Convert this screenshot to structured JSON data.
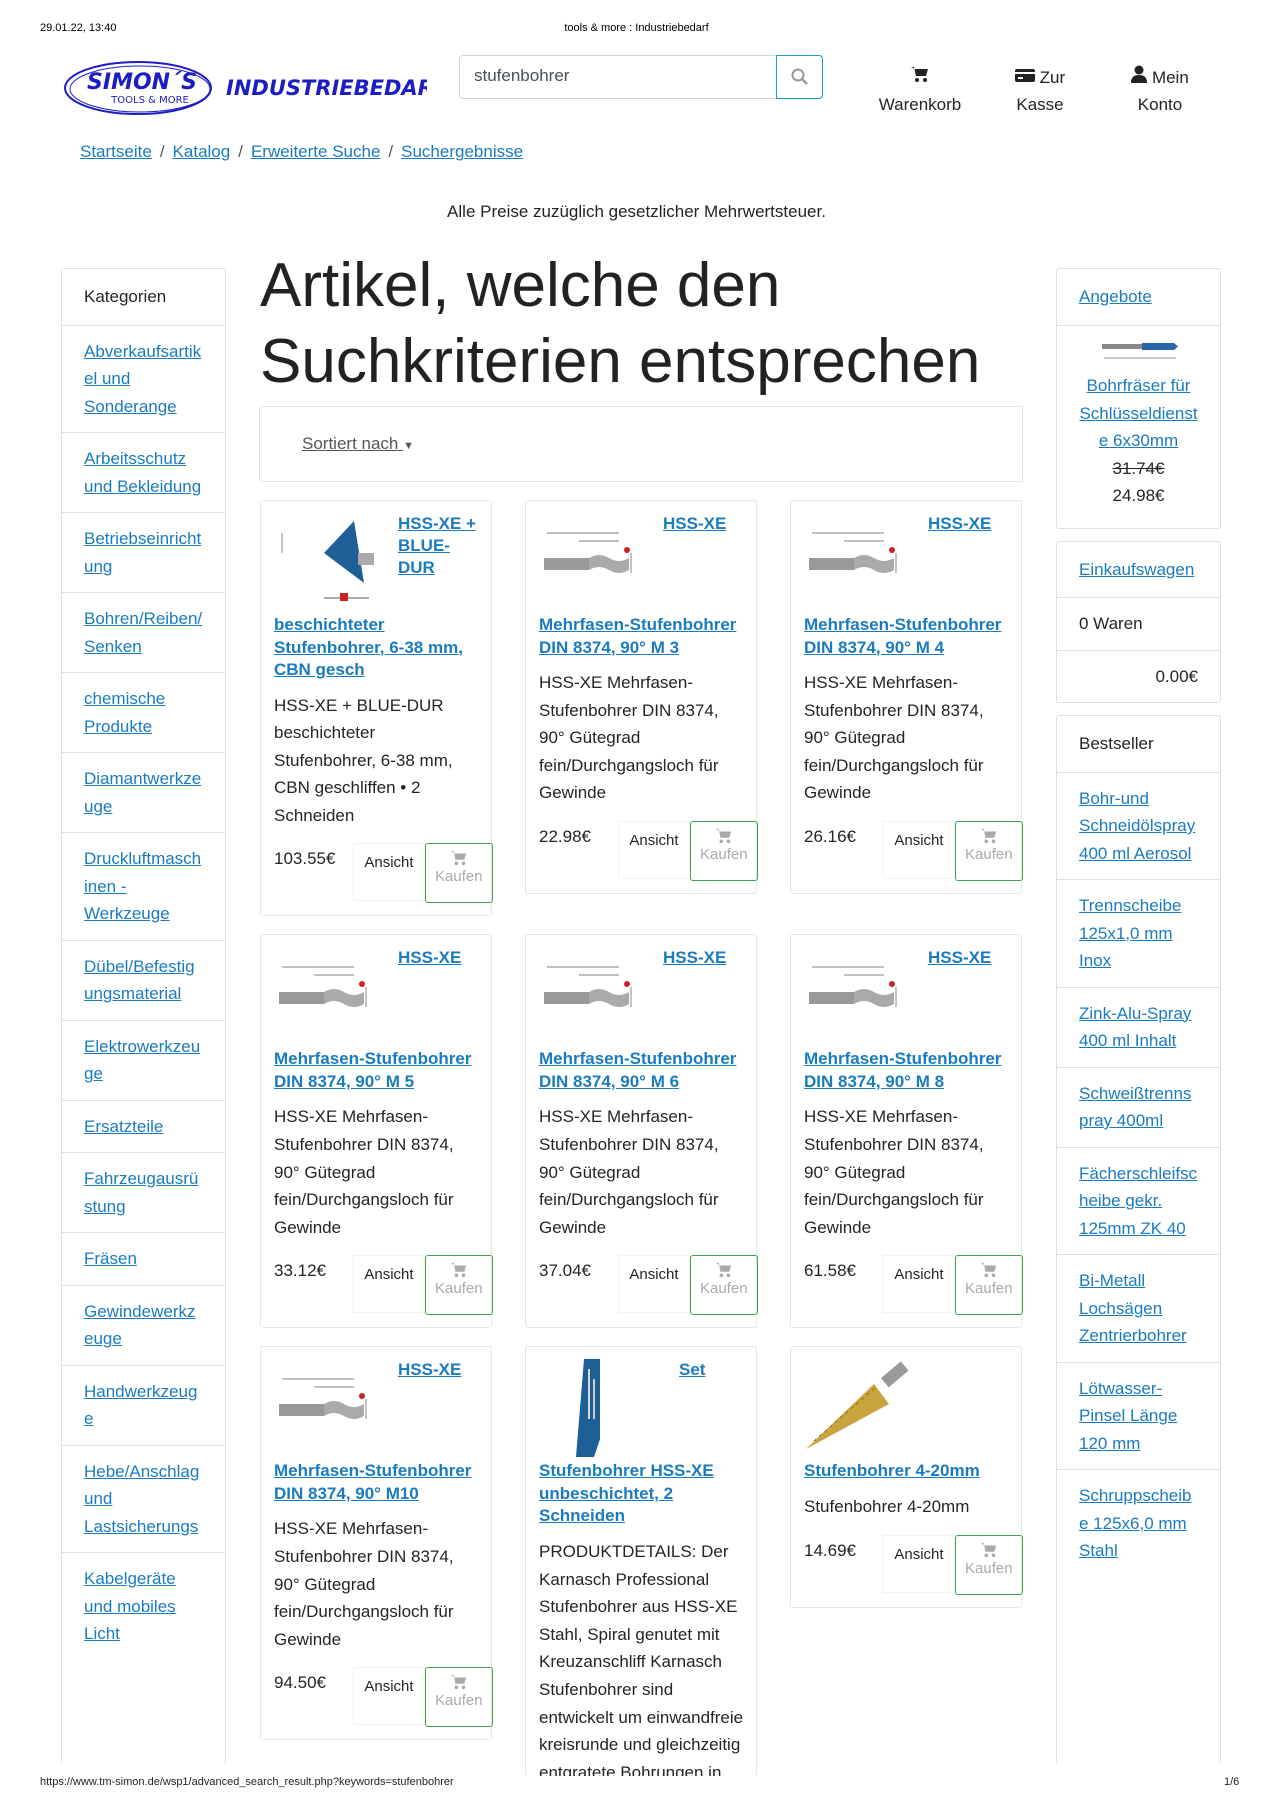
{
  "print_header": {
    "datetime": "29.01.22, 13:40",
    "title": "tools & more : Industriebedarf"
  },
  "print_footer": {
    "url": "https://www.tm-simon.de/wsp1/advanced_search_result.php?keywords=stufenbohrer",
    "page": "1/6"
  },
  "logo": {
    "text_main": "SIMON´S",
    "text_sub": "TOOLS & MORE",
    "text_right": "INDUSTRIEBEDARF",
    "color": "#1d1dc4"
  },
  "search": {
    "value": "stufenbohrer",
    "icon": "search-icon"
  },
  "nav": {
    "cart": "Warenkorb",
    "checkout_1": "Zur",
    "checkout_2": "Kasse",
    "account_1": "Mein",
    "account_2": "Konto"
  },
  "breadcrumb": [
    "Startseite",
    "Katalog",
    "Erweiterte Suche",
    "Suchergebnisse"
  ],
  "notice": "Alle Preise zuzüglich gesetzlicher Mehrwertsteuer.",
  "categories": {
    "title": "Kategorien",
    "items": [
      "Abverkaufsartikel und Sonderange",
      "Arbeitsschutz und Bekleidung",
      "Betriebseinrichtung",
      "Bohren/Reiben/Senken",
      "chemische Produkte",
      "Diamantwerkzeuge",
      "Druckluftmaschinen - Werkzeuge",
      "Dübel/Befestigungsmaterial",
      "Elektrowerkzeuge",
      "Ersatzteile",
      "Fahrzeugausrüstung",
      "Fräsen",
      "Gewindewerkzeuge",
      "Handwerkzeuge",
      "Hebe/Anschlag und Lastsicherungs",
      "Kabelgeräte und mobiles Licht"
    ]
  },
  "main": {
    "title": "Artikel, welche den Suchkriterien entsprechen",
    "sort_label": "Sortiert nach"
  },
  "product_buttons": {
    "view": "Ansicht",
    "buy": "Kaufen"
  },
  "products": [
    {
      "tag": "HSS-XE + BLUE-DUR",
      "title": "beschichteter Stufenbohrer, 6-38 mm, CBN gesch",
      "desc": "HSS-XE + BLUE-DUR beschichteter Stufenbohrer, 6-38 mm, CBN geschliffen • 2 Schneiden",
      "price": "103.55€",
      "image": "blue-cone"
    },
    {
      "tag": "HSS-XE",
      "title": "Mehrfasen-Stufenbohrer DIN 8374, 90° M 3",
      "desc": "HSS-XE Mehrfasen-Stufenbohrer DIN 8374, 90° Gütegrad fein/Durchgangsloch für Gewinde",
      "price": "22.98€",
      "image": "drill-drawing"
    },
    {
      "tag": "HSS-XE",
      "title": "Mehrfasen-Stufenbohrer DIN 8374, 90° M 4",
      "desc": "HSS-XE Mehrfasen-Stufenbohrer DIN 8374, 90° Gütegrad fein/Durchgangsloch für Gewinde",
      "price": "26.16€",
      "image": "drill-drawing"
    },
    {
      "tag": "HSS-XE",
      "title": "Mehrfasen-Stufenbohrer DIN 8374, 90° M 5",
      "desc": "HSS-XE Mehrfasen-Stufenbohrer DIN 8374, 90° Gütegrad fein/Durchgangsloch für Gewinde",
      "price": "33.12€",
      "image": "drill-drawing"
    },
    {
      "tag": "HSS-XE",
      "title": "Mehrfasen-Stufenbohrer DIN 8374, 90° M 6",
      "desc": "HSS-XE Mehrfasen-Stufenbohrer DIN 8374, 90° Gütegrad fein/Durchgangsloch für Gewinde",
      "price": "37.04€",
      "image": "drill-drawing"
    },
    {
      "tag": "HSS-XE",
      "title": "Mehrfasen-Stufenbohrer DIN 8374, 90° M 8",
      "desc": "HSS-XE Mehrfasen-Stufenbohrer DIN 8374, 90° Gütegrad fein/Durchgangsloch für Gewinde",
      "price": "61.58€",
      "image": "drill-drawing"
    },
    {
      "tag": "HSS-XE",
      "title": "Mehrfasen-Stufenbohrer DIN 8374, 90° M10",
      "desc": "HSS-XE Mehrfasen-Stufenbohrer DIN 8374, 90° Gütegrad fein/Durchgangsloch für Gewinde",
      "price": "94.50€",
      "image": "drill-drawing"
    },
    {
      "tag": "Set",
      "title": "Stufenbohrer HSS-XE unbeschichtet, 2 Schneiden",
      "desc": "PRODUKTDETAILS: Der Karnasch Professional Stufenbohrer aus HSS-XE Stahl, Spiral genutet mit Kreuzanschliff Karnasch Stufenbohrer sind entwickelt um einwandfreie kreisrunde und gleichzeitig entgratete Bohrungen in",
      "price": "",
      "image": "blue-set-case"
    },
    {
      "tag": "",
      "title": "Stufenbohrer 4-20mm",
      "desc": "Stufenbohrer 4-20mm",
      "price": "14.69€",
      "image": "gold-cone"
    }
  ],
  "offers": {
    "title": "Angebote",
    "product": "Bohrfräser für Schlüsseldienste 6x30mm",
    "old_price": "31.74€",
    "price": "24.98€"
  },
  "cart_box": {
    "title": "Einkaufswagen",
    "items": "0 Waren",
    "total": "0.00€"
  },
  "bestseller": {
    "title": "Bestseller",
    "items": [
      "Bohr-und Schneidölspray 400 ml Aerosol",
      "Trennscheibe 125x1,0 mm Inox",
      "Zink-Alu-Spray 400 ml Inhalt",
      "Schweißtrennspray 400ml",
      "Fächerschleifscheibe gekr. 125mm ZK 40",
      "Bi-Metall Lochsägen Zentrierbohrer",
      "Lötwasser-Pinsel Länge 120 mm",
      "Schruppscheibe 125x6,0 mm Stahl"
    ]
  },
  "colors": {
    "link": "#1a7bbf",
    "buy_border": "#3fa34d",
    "search_button_border": "#17a2b8"
  }
}
